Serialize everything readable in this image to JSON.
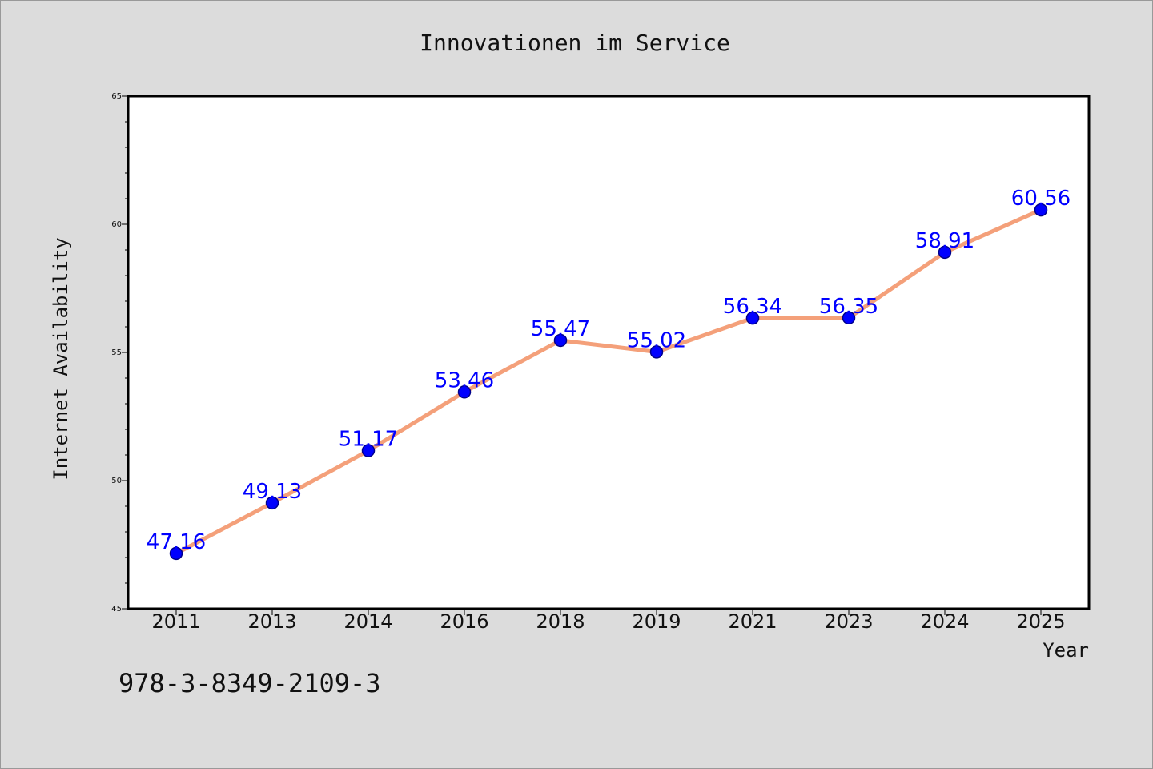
{
  "chart_data": {
    "type": "line",
    "title": "Innovationen im Service",
    "xlabel": "Year",
    "ylabel": "Internet Availability",
    "categories": [
      "2011",
      "2013",
      "2014",
      "2016",
      "2018",
      "2019",
      "2021",
      "2023",
      "2024",
      "2025"
    ],
    "values": [
      47.16,
      49.13,
      51.17,
      53.46,
      55.47,
      55.02,
      56.34,
      56.35,
      58.91,
      60.56
    ],
    "data_labels": [
      "47.16",
      "49.13",
      "51.17",
      "53.46",
      "55.47",
      "55.02",
      "56.34",
      "56.35",
      "58.91",
      "60.56"
    ],
    "ylim": [
      45,
      65
    ],
    "yticks": [
      "45",
      "50",
      "55",
      "60",
      "65"
    ],
    "grid": false,
    "line_color": "#f4a07a",
    "marker_color": "#0000ff",
    "label_color": "#0000ff",
    "background": "#dcdcdc",
    "plot_background": "#ffffff"
  },
  "footer": {
    "isbn": "978-3-8349-2109-3"
  }
}
